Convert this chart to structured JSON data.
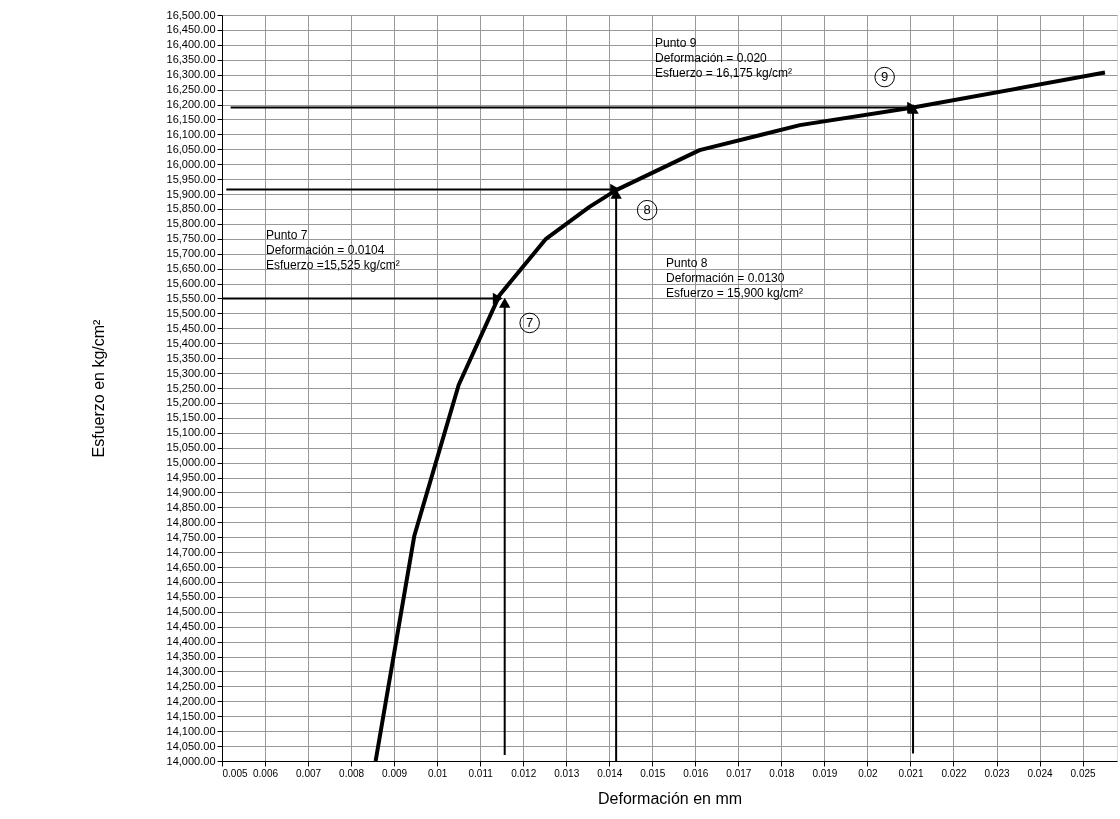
{
  "chart_data": {
    "type": "line",
    "xlabel": "Deformación en mm",
    "ylabel": "Esfuerzo en kg/cm²",
    "xlim": [
      0.005,
      0.0258
    ],
    "xticks": [
      0.005,
      0.006,
      0.007,
      0.008,
      0.009,
      0.01,
      0.011,
      0.012,
      0.013,
      0.014,
      0.015,
      0.016,
      0.017,
      0.018,
      0.019,
      0.02,
      0.021,
      0.022,
      0.023,
      0.024,
      0.025
    ],
    "ylim": [
      14000,
      16500
    ],
    "yticks": [
      {
        "value": 14000,
        "label": "14,000.00"
      },
      {
        "value": 14050,
        "label": "14,050.00"
      },
      {
        "value": 14100,
        "label": "14,100.00"
      },
      {
        "value": 14150,
        "label": "14,150.00"
      },
      {
        "value": 14200,
        "label": "14,200.00"
      },
      {
        "value": 14250,
        "label": "14,250.00"
      },
      {
        "value": 14300,
        "label": "14,300.00"
      },
      {
        "value": 14350,
        "label": "14,350.00"
      },
      {
        "value": 14400,
        "label": "14,400.00"
      },
      {
        "value": 14450,
        "label": "14,450.00"
      },
      {
        "value": 14500,
        "label": "14,500.00"
      },
      {
        "value": 14550,
        "label": "14,550.00"
      },
      {
        "value": 14600,
        "label": "14,600.00"
      },
      {
        "value": 14650,
        "label": "14,650.00"
      },
      {
        "value": 14700,
        "label": "14,700.00"
      },
      {
        "value": 14750,
        "label": "14,750.00"
      },
      {
        "value": 14800,
        "label": "14,800.00"
      },
      {
        "value": 14850,
        "label": "14,850.00"
      },
      {
        "value": 14900,
        "label": "14,900.00"
      },
      {
        "value": 14950,
        "label": "14,950.00"
      },
      {
        "value": 15000,
        "label": "15,000.00"
      },
      {
        "value": 15050,
        "label": "15,050.00"
      },
      {
        "value": 15100,
        "label": "15,100.00"
      },
      {
        "value": 15150,
        "label": "15,150.00"
      },
      {
        "value": 15200,
        "label": "15,200.00"
      },
      {
        "value": 15250,
        "label": "15,250.00"
      },
      {
        "value": 15300,
        "label": "15,300.00"
      },
      {
        "value": 15350,
        "label": "15,350.00"
      },
      {
        "value": 15400,
        "label": "15,400.00"
      },
      {
        "value": 15450,
        "label": "15,450.00"
      },
      {
        "value": 15500,
        "label": "15,500.00"
      },
      {
        "value": 15550,
        "label": "15,550.00"
      },
      {
        "value": 15600,
        "label": "15,600.00"
      },
      {
        "value": 15650,
        "label": "15,650.00"
      },
      {
        "value": 15700,
        "label": "15,700.00"
      },
      {
        "value": 15750,
        "label": "15,750.00"
      },
      {
        "value": 15800,
        "label": "15,800.00"
      },
      {
        "value": 15850,
        "label": "15,850.00"
      },
      {
        "value": 15900,
        "label": "15,900.00"
      },
      {
        "value": 15950,
        "label": "15,950.00"
      },
      {
        "value": 16000,
        "label": "16,000.00"
      },
      {
        "value": 16050,
        "label": "16,050.00"
      },
      {
        "value": 16100,
        "label": "16,100.00"
      },
      {
        "value": 16150,
        "label": "16,150.00"
      },
      {
        "value": 16200,
        "label": "16,200.00"
      },
      {
        "value": 16250,
        "label": "16,250.00"
      },
      {
        "value": 16300,
        "label": "16,300.00"
      },
      {
        "value": 16350,
        "label": "16,350.00"
      },
      {
        "value": 16400,
        "label": "16,400.00"
      },
      {
        "value": 16450,
        "label": "16,450.00"
      },
      {
        "value": 16500,
        "label": "16,500.00"
      }
    ],
    "grid": true,
    "series": [
      {
        "color": "#000000",
        "marker": "none",
        "x": [
          0.00857,
          0.00947,
          0.0105,
          0.01145,
          0.01253,
          0.01354,
          0.01416,
          0.0161,
          0.01843,
          0.02106,
          0.02552
        ],
        "values": [
          14000,
          14755,
          15260,
          15561,
          15750,
          15857,
          15913,
          16047,
          16131,
          16190,
          16307
        ]
      },
      {
        "color": "#000000",
        "marker": "triangle",
        "x": [
          0.005,
          0.01137
        ],
        "values": [
          15550,
          15550
        ]
      },
      {
        "color": "#000000",
        "marker": "triangle",
        "x": [
          0.01157,
          0.01157
        ],
        "values": [
          14020,
          15530
        ]
      },
      {
        "color": "#000000",
        "marker": "triangle",
        "x": [
          0.0051,
          0.0141
        ],
        "values": [
          15915,
          15915
        ]
      },
      {
        "color": "#000000",
        "marker": "triangle",
        "x": [
          0.01416,
          0.01416
        ],
        "values": [
          14000,
          15895
        ]
      },
      {
        "color": "#000000",
        "marker": "triangle",
        "x": [
          0.0052,
          0.021
        ],
        "values": [
          16190,
          16190
        ]
      },
      {
        "color": "#000000",
        "marker": "triangle",
        "x": [
          0.02106,
          0.02106
        ],
        "values": [
          14025,
          16180
        ]
      }
    ],
    "annotations": [
      "Punto 7\nDeformación = 0.0104\nEsfuerzo =15,525 kg/cm²",
      "Punto 8\nDeformación = 0.0130\nEsfuerzo = 15,900 kg/cm²",
      "Punto 9\nDeformación = 0.020\nEsfuerzo = 16,175 kg/cm²",
      {
        "text": "7",
        "x": 0.01215,
        "y": 15468
      },
      {
        "text": "8",
        "x": 0.01488,
        "y": 15846
      },
      {
        "text": "9",
        "x": 0.0204,
        "y": 16292
      }
    ]
  }
}
